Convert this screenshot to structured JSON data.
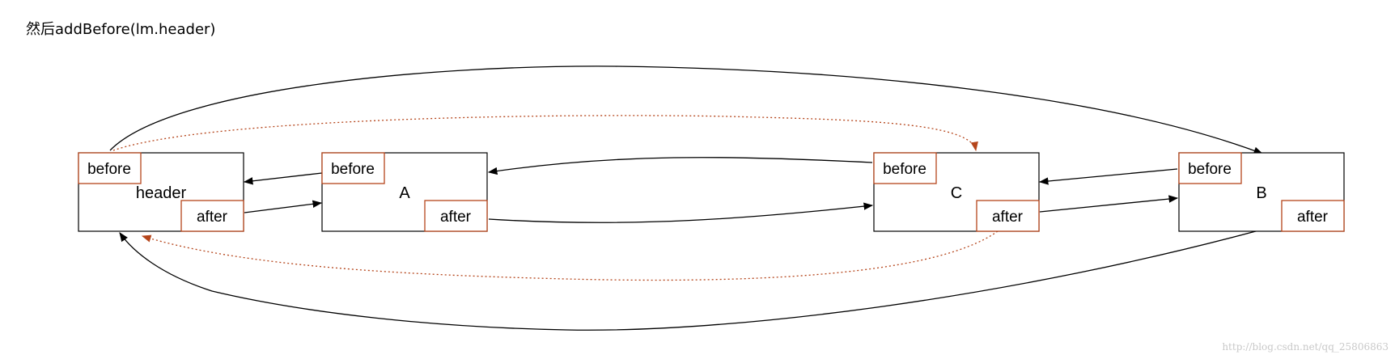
{
  "title": "然后addBefore(lm.header)",
  "colors": {
    "box_stroke": "#000000",
    "field_stroke": "#b5451b",
    "dotted_arrow": "#b5451b"
  },
  "nodes": [
    {
      "id": "header",
      "label": "header",
      "before_label": "before",
      "after_label": "after"
    },
    {
      "id": "A",
      "label": "A",
      "before_label": "before",
      "after_label": "after"
    },
    {
      "id": "C",
      "label": "C",
      "before_label": "before",
      "after_label": "after"
    },
    {
      "id": "B",
      "label": "B",
      "before_label": "before",
      "after_label": "after"
    }
  ],
  "edges": [
    {
      "from": "A.before",
      "to": "header",
      "style": "solid"
    },
    {
      "from": "header.after",
      "to": "A",
      "style": "solid"
    },
    {
      "from": "C.before",
      "to": "A",
      "style": "solid"
    },
    {
      "from": "A.after",
      "to": "C",
      "style": "solid"
    },
    {
      "from": "B.before",
      "to": "C",
      "style": "solid"
    },
    {
      "from": "C.after",
      "to": "B",
      "style": "solid"
    },
    {
      "from": "header.before",
      "to": "B",
      "style": "solid"
    },
    {
      "from": "B.after",
      "to": "header",
      "style": "solid"
    },
    {
      "from": "header.before",
      "to": "C",
      "style": "dotted"
    },
    {
      "from": "C.after",
      "to": "header",
      "style": "dotted"
    }
  ],
  "watermark": "http://blog.csdn.net/qq_25806863"
}
